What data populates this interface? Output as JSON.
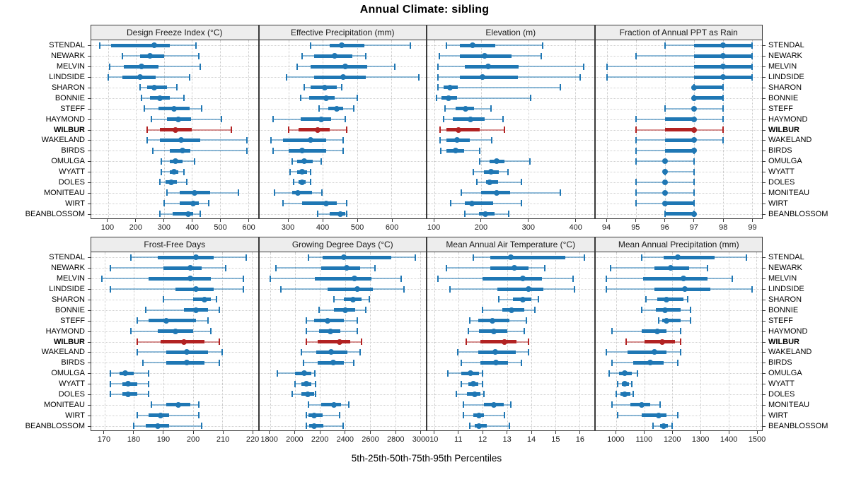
{
  "title": "Annual Climate: sibling",
  "caption": "5th-25th-50th-75th-95th Percentiles",
  "colors": {
    "series": "#1f77b4",
    "series_line": "rgba(31,119,180,0.5)",
    "highlight": "#b22222",
    "highlight_line": "rgba(178,34,34,0.5)",
    "grid": "#c9c9c9",
    "frame": "#3a3a3a",
    "header_bg": "#ededed"
  },
  "chart_data": {
    "type": "dotplot-percentile-intervals",
    "percentiles": [
      5,
      25,
      50,
      75,
      95
    ],
    "highlight_site": "WILBUR",
    "legend_position": "none",
    "grid": "dotted",
    "sites": [
      "STENDAL",
      "NEWARK",
      "MELVIN",
      "LINDSIDE",
      "SHARON",
      "BONNIE",
      "STEFF",
      "HAYMOND",
      "WILBUR",
      "WAKELAND",
      "BIRDS",
      "OMULGA",
      "WYATT",
      "DOLES",
      "MONITEAU",
      "WIRT",
      "BEANBLOSSOM"
    ],
    "panels": [
      {
        "title": "Design Freeze Index (°C)",
        "row": 0,
        "col": 0,
        "domain": [
          40,
          635
        ],
        "ticks": [
          100,
          200,
          300,
          400,
          500,
          600
        ],
        "values": [
          [
            70,
            110,
            265,
            320,
            415
          ],
          [
            150,
            215,
            250,
            300,
            425
          ],
          [
            105,
            155,
            220,
            280,
            430
          ],
          [
            100,
            150,
            215,
            270,
            390
          ],
          [
            215,
            240,
            265,
            310,
            345
          ],
          [
            220,
            250,
            285,
            320,
            370
          ],
          [
            230,
            280,
            335,
            390,
            435
          ],
          [
            255,
            310,
            350,
            395,
            505
          ],
          [
            240,
            285,
            340,
            400,
            540
          ],
          [
            240,
            285,
            360,
            430,
            595
          ],
          [
            260,
            320,
            365,
            395,
            595
          ],
          [
            290,
            320,
            340,
            365,
            410
          ],
          [
            290,
            320,
            335,
            350,
            370
          ],
          [
            285,
            305,
            325,
            345,
            380
          ],
          [
            310,
            355,
            410,
            465,
            565
          ],
          [
            300,
            355,
            405,
            425,
            460
          ],
          [
            285,
            330,
            385,
            405,
            430
          ]
        ]
      },
      {
        "title": "Effective Precipitation (mm)",
        "row": 0,
        "col": 1,
        "domain": [
          215,
          700
        ],
        "ticks": [
          300,
          400,
          500,
          600
        ],
        "values": [
          [
            365,
            420,
            455,
            520,
            655
          ],
          [
            340,
            375,
            435,
            485,
            525
          ],
          [
            325,
            365,
            465,
            530,
            610
          ],
          [
            295,
            375,
            460,
            525,
            680
          ],
          [
            345,
            365,
            405,
            440,
            455
          ],
          [
            335,
            360,
            410,
            435,
            500
          ],
          [
            390,
            415,
            440,
            460,
            490
          ],
          [
            255,
            335,
            395,
            425,
            465
          ],
          [
            300,
            330,
            385,
            420,
            470
          ],
          [
            250,
            285,
            365,
            410,
            460
          ],
          [
            255,
            300,
            340,
            410,
            460
          ],
          [
            310,
            325,
            345,
            370,
            395
          ],
          [
            305,
            325,
            340,
            355,
            365
          ],
          [
            315,
            330,
            340,
            350,
            365
          ],
          [
            260,
            310,
            327,
            369,
            398
          ],
          [
            285,
            340,
            410,
            440,
            470
          ],
          [
            385,
            420,
            450,
            465,
            470
          ]
        ]
      },
      {
        "title": "Elevation (m)",
        "row": 0,
        "col": 2,
        "domain": [
          85,
          440
        ],
        "ticks": [
          100,
          200,
          300,
          400
        ],
        "values": [
          [
            125,
            155,
            182,
            230,
            330
          ],
          [
            110,
            155,
            207,
            265,
            327
          ],
          [
            108,
            165,
            215,
            280,
            418
          ],
          [
            107,
            155,
            202,
            278,
            410
          ],
          [
            108,
            120,
            133,
            150,
            368
          ],
          [
            105,
            115,
            130,
            148,
            305
          ],
          [
            123,
            145,
            167,
            185,
            220
          ],
          [
            120,
            140,
            177,
            207,
            247
          ],
          [
            112,
            125,
            152,
            197,
            250
          ],
          [
            112,
            125,
            148,
            175,
            222
          ],
          [
            113,
            125,
            145,
            163,
            196
          ],
          [
            197,
            218,
            232,
            250,
            303
          ],
          [
            183,
            205,
            220,
            237,
            257
          ],
          [
            190,
            210,
            218,
            235,
            285
          ],
          [
            157,
            200,
            233,
            262,
            368
          ],
          [
            135,
            165,
            180,
            225,
            285
          ],
          [
            165,
            195,
            208,
            228,
            258
          ]
        ]
      },
      {
        "title": "Fraction of Annual PPT as Rain",
        "row": 0,
        "col": 3,
        "domain": [
          93.6,
          99.35
        ],
        "ticks": [
          94,
          95,
          96,
          97,
          98,
          99
        ],
        "values": [
          [
            96,
            97,
            98,
            99,
            99
          ],
          [
            95,
            97,
            98,
            99,
            99
          ],
          [
            94,
            97,
            98,
            99,
            99
          ],
          [
            94,
            97,
            98,
            99,
            99
          ],
          [
            97,
            97,
            97,
            98,
            98
          ],
          [
            97,
            97,
            97,
            98,
            98
          ],
          [
            96,
            97,
            97,
            97,
            98
          ],
          [
            95,
            96,
            97,
            97,
            98
          ],
          [
            95,
            96,
            97,
            97,
            98
          ],
          [
            95,
            96,
            97,
            97,
            98
          ],
          [
            95,
            96,
            97,
            97,
            97
          ],
          [
            95,
            96,
            96,
            96,
            97
          ],
          [
            96,
            96,
            96,
            96,
            97
          ],
          [
            95,
            96,
            96,
            96,
            97
          ],
          [
            95,
            96,
            96,
            96,
            97
          ],
          [
            95,
            96,
            96,
            97,
            97
          ],
          [
            96,
            96,
            97,
            97,
            97
          ]
        ]
      },
      {
        "title": "Frost-Free Days",
        "row": 1,
        "col": 0,
        "domain": [
          165.5,
          222
        ],
        "ticks": [
          170,
          180,
          190,
          200,
          210,
          220
        ],
        "values": [
          [
            179,
            188,
            201,
            207,
            218
          ],
          [
            172,
            190,
            199,
            203,
            211
          ],
          [
            169,
            185,
            199,
            206,
            217
          ],
          [
            172,
            194,
            201,
            207,
            217
          ],
          [
            190,
            200,
            204,
            206,
            208
          ],
          [
            184,
            197,
            201,
            205,
            209
          ],
          [
            181,
            185,
            191,
            201,
            205
          ],
          [
            179,
            188,
            194,
            200,
            206
          ],
          [
            181,
            189,
            197,
            204,
            209
          ],
          [
            181,
            191,
            198,
            205,
            210
          ],
          [
            183,
            191,
            198,
            204,
            209
          ],
          [
            172,
            175,
            177,
            180,
            185
          ],
          [
            172,
            176,
            178,
            181,
            185
          ],
          [
            172,
            176,
            178,
            181,
            185
          ],
          [
            186,
            191,
            195,
            199,
            202
          ],
          [
            181,
            185,
            189,
            192,
            202
          ],
          [
            180,
            184,
            188,
            192,
            203
          ]
        ]
      },
      {
        "title": "Growing Degree Days (°C)",
        "row": 1,
        "col": 1,
        "domain": [
          1715,
          3045
        ],
        "ticks": [
          1800,
          2000,
          2200,
          2400,
          2600,
          2800,
          3000
        ],
        "values": [
          [
            2110,
            2220,
            2390,
            2770,
            2960
          ],
          [
            1850,
            2210,
            2410,
            2520,
            2640
          ],
          [
            1800,
            2160,
            2475,
            2610,
            2850
          ],
          [
            1890,
            2260,
            2500,
            2620,
            2870
          ],
          [
            2310,
            2390,
            2465,
            2530,
            2595
          ],
          [
            2190,
            2310,
            2400,
            2480,
            2565
          ],
          [
            2090,
            2150,
            2260,
            2390,
            2500
          ],
          [
            2090,
            2190,
            2285,
            2360,
            2495
          ],
          [
            2090,
            2180,
            2355,
            2440,
            2530
          ],
          [
            2050,
            2170,
            2290,
            2420,
            2520
          ],
          [
            2070,
            2180,
            2305,
            2390,
            2470
          ],
          [
            1860,
            2000,
            2075,
            2130,
            2160
          ],
          [
            2000,
            2050,
            2090,
            2130,
            2165
          ],
          [
            1980,
            2050,
            2100,
            2150,
            2165
          ],
          [
            2110,
            2210,
            2310,
            2370,
            2430
          ],
          [
            2090,
            2110,
            2155,
            2220,
            2355
          ],
          [
            2090,
            2115,
            2155,
            2225,
            2385
          ]
        ]
      },
      {
        "title": "Mean Annual Air Temperature (°C)",
        "row": 1,
        "col": 2,
        "domain": [
          9.7,
          16.6
        ],
        "ticks": [
          10,
          11,
          12,
          13,
          14,
          15,
          16
        ],
        "values": [
          [
            11.6,
            12.3,
            13.15,
            15.4,
            16.2
          ],
          [
            10.5,
            12.3,
            13.3,
            13.9,
            14.55
          ],
          [
            10.15,
            12.0,
            13.65,
            14.45,
            15.75
          ],
          [
            10.65,
            12.6,
            13.9,
            14.5,
            15.8
          ],
          [
            12.65,
            13.25,
            13.65,
            14.0,
            14.3
          ],
          [
            12.0,
            12.8,
            13.2,
            13.7,
            14.15
          ],
          [
            11.45,
            11.8,
            12.4,
            13.1,
            13.8
          ],
          [
            11.4,
            11.85,
            12.45,
            13.0,
            13.7
          ],
          [
            11.3,
            11.9,
            12.9,
            13.4,
            13.9
          ],
          [
            10.95,
            11.8,
            12.5,
            13.35,
            13.9
          ],
          [
            11.1,
            11.9,
            12.55,
            13.05,
            13.6
          ],
          [
            10.55,
            11.1,
            11.5,
            11.85,
            12.0
          ],
          [
            11.1,
            11.4,
            11.6,
            11.8,
            12.0
          ],
          [
            10.9,
            11.35,
            11.65,
            11.9,
            12.05
          ],
          [
            11.2,
            12.05,
            12.45,
            12.85,
            13.15
          ],
          [
            11.2,
            11.6,
            11.85,
            12.05,
            12.9
          ],
          [
            11.45,
            11.65,
            11.85,
            12.15,
            13.1
          ]
        ]
      },
      {
        "title": "Mean Annual Precipitation (mm)",
        "row": 1,
        "col": 3,
        "domain": [
          925,
          1520
        ],
        "ticks": [
          1000,
          1100,
          1200,
          1300,
          1400,
          1500
        ],
        "values": [
          [
            1090,
            1170,
            1220,
            1350,
            1465
          ],
          [
            980,
            1135,
            1195,
            1260,
            1325
          ],
          [
            965,
            1095,
            1240,
            1325,
            1415
          ],
          [
            965,
            1135,
            1245,
            1335,
            1485
          ],
          [
            1105,
            1145,
            1180,
            1240,
            1255
          ],
          [
            1090,
            1140,
            1175,
            1230,
            1265
          ],
          [
            1150,
            1165,
            1180,
            1230,
            1265
          ],
          [
            985,
            1090,
            1145,
            1180,
            1230
          ],
          [
            1035,
            1100,
            1165,
            1210,
            1230
          ],
          [
            965,
            1040,
            1135,
            1180,
            1230
          ],
          [
            985,
            1060,
            1120,
            1170,
            1220
          ],
          [
            975,
            1010,
            1030,
            1055,
            1075
          ],
          [
            1005,
            1020,
            1030,
            1045,
            1055
          ],
          [
            1000,
            1015,
            1030,
            1050,
            1060
          ],
          [
            985,
            1050,
            1090,
            1120,
            1155
          ],
          [
            1005,
            1090,
            1150,
            1180,
            1220
          ],
          [
            1130,
            1155,
            1170,
            1185,
            1200
          ]
        ]
      }
    ]
  }
}
